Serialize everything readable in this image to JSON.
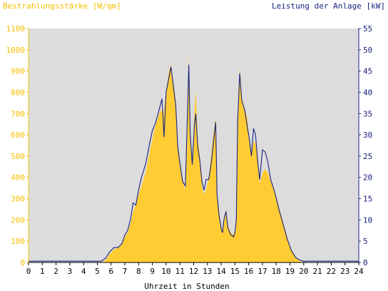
{
  "chart_data": {
    "type": "area",
    "title_left": "Bestrahlungsstärke [W/qm]",
    "title_right": "Leistung der Anlage [kW]",
    "xlabel": "Uhrzeit in Stunden",
    "xlim": [
      0,
      24
    ],
    "x_ticks": [
      0,
      1,
      2,
      3,
      4,
      5,
      6,
      7,
      8,
      9,
      10,
      11,
      12,
      13,
      14,
      15,
      16,
      17,
      18,
      19,
      20,
      21,
      22,
      23,
      24
    ],
    "y_left": {
      "lim": [
        0,
        1100
      ],
      "ticks": [
        0,
        100,
        200,
        300,
        400,
        500,
        600,
        700,
        800,
        900,
        1000,
        1100
      ]
    },
    "y_right": {
      "lim": [
        0,
        55
      ],
      "ticks": [
        0,
        5,
        10,
        15,
        20,
        25,
        30,
        35,
        40,
        45,
        50,
        55
      ]
    },
    "grid": false,
    "background": "#dcdcdc",
    "series": [
      {
        "axis": "left",
        "color": "#ffcc33",
        "style": "area",
        "points": [
          [
            0,
            0
          ],
          [
            5.3,
            0
          ],
          [
            5.6,
            10
          ],
          [
            5.9,
            40
          ],
          [
            6.2,
            60
          ],
          [
            6.5,
            70
          ],
          [
            6.8,
            90
          ],
          [
            7.0,
            120
          ],
          [
            7.2,
            140
          ],
          [
            7.4,
            180
          ],
          [
            7.6,
            240
          ],
          [
            7.8,
            270
          ],
          [
            8.0,
            320
          ],
          [
            8.2,
            360
          ],
          [
            8.5,
            420
          ],
          [
            8.8,
            520
          ],
          [
            9.0,
            580
          ],
          [
            9.2,
            640
          ],
          [
            9.5,
            700
          ],
          [
            9.7,
            720
          ],
          [
            9.8,
            690
          ],
          [
            10.0,
            800
          ],
          [
            10.2,
            900
          ],
          [
            10.35,
            930
          ],
          [
            10.5,
            860
          ],
          [
            10.7,
            760
          ],
          [
            10.85,
            560
          ],
          [
            11.0,
            480
          ],
          [
            11.2,
            380
          ],
          [
            11.4,
            340
          ],
          [
            11.55,
            600
          ],
          [
            11.65,
            990
          ],
          [
            11.75,
            600
          ],
          [
            11.9,
            460
          ],
          [
            12.05,
            700
          ],
          [
            12.15,
            810
          ],
          [
            12.3,
            580
          ],
          [
            12.45,
            500
          ],
          [
            12.6,
            360
          ],
          [
            12.75,
            320
          ],
          [
            12.9,
            340
          ],
          [
            13.1,
            400
          ],
          [
            13.3,
            520
          ],
          [
            13.5,
            640
          ],
          [
            13.6,
            680
          ],
          [
            13.7,
            320
          ],
          [
            13.85,
            240
          ],
          [
            14.0,
            170
          ],
          [
            14.1,
            150
          ],
          [
            14.2,
            190
          ],
          [
            14.35,
            230
          ],
          [
            14.5,
            170
          ],
          [
            14.7,
            140
          ],
          [
            14.9,
            130
          ],
          [
            15.0,
            150
          ],
          [
            15.1,
            230
          ],
          [
            15.2,
            700
          ],
          [
            15.35,
            920
          ],
          [
            15.5,
            780
          ],
          [
            15.7,
            720
          ],
          [
            15.9,
            680
          ],
          [
            16.05,
            560
          ],
          [
            16.2,
            500
          ],
          [
            16.35,
            570
          ],
          [
            16.5,
            560
          ],
          [
            16.65,
            480
          ],
          [
            16.8,
            370
          ],
          [
            17.0,
            420
          ],
          [
            17.2,
            440
          ],
          [
            17.4,
            420
          ],
          [
            17.6,
            380
          ],
          [
            17.9,
            330
          ],
          [
            18.2,
            260
          ],
          [
            18.5,
            190
          ],
          [
            18.8,
            120
          ],
          [
            19.1,
            60
          ],
          [
            19.4,
            25
          ],
          [
            19.7,
            8
          ],
          [
            20.0,
            0
          ],
          [
            24,
            0
          ]
        ]
      },
      {
        "axis": "right",
        "color": "#1a237e",
        "style": "line",
        "points": [
          [
            0,
            0.3
          ],
          [
            5.3,
            0.3
          ],
          [
            5.6,
            1
          ],
          [
            5.9,
            2.5
          ],
          [
            6.2,
            3.5
          ],
          [
            6.5,
            3.5
          ],
          [
            6.8,
            4.5
          ],
          [
            7.0,
            6.5
          ],
          [
            7.2,
            7.5
          ],
          [
            7.4,
            10
          ],
          [
            7.6,
            14
          ],
          [
            7.8,
            13.5
          ],
          [
            8.0,
            17
          ],
          [
            8.2,
            20
          ],
          [
            8.5,
            23
          ],
          [
            8.8,
            28
          ],
          [
            9.0,
            31
          ],
          [
            9.2,
            32.5
          ],
          [
            9.5,
            36
          ],
          [
            9.7,
            38.5
          ],
          [
            9.85,
            29.5
          ],
          [
            10.0,
            40
          ],
          [
            10.2,
            43.5
          ],
          [
            10.35,
            46
          ],
          [
            10.5,
            42
          ],
          [
            10.7,
            37
          ],
          [
            10.85,
            27
          ],
          [
            11.0,
            23.5
          ],
          [
            11.2,
            19
          ],
          [
            11.4,
            18
          ],
          [
            11.55,
            35
          ],
          [
            11.65,
            46.5
          ],
          [
            11.75,
            30
          ],
          [
            11.9,
            23
          ],
          [
            12.05,
            32
          ],
          [
            12.15,
            35
          ],
          [
            12.3,
            27
          ],
          [
            12.45,
            24
          ],
          [
            12.6,
            19
          ],
          [
            12.75,
            17
          ],
          [
            12.9,
            19.5
          ],
          [
            13.1,
            19.5
          ],
          [
            13.3,
            24
          ],
          [
            13.5,
            30
          ],
          [
            13.6,
            33
          ],
          [
            13.7,
            16
          ],
          [
            13.85,
            11
          ],
          [
            14.0,
            8
          ],
          [
            14.1,
            7
          ],
          [
            14.2,
            10
          ],
          [
            14.35,
            12
          ],
          [
            14.5,
            8
          ],
          [
            14.7,
            6.5
          ],
          [
            14.9,
            6
          ],
          [
            15.0,
            7
          ],
          [
            15.1,
            10
          ],
          [
            15.2,
            33
          ],
          [
            15.35,
            44.5
          ],
          [
            15.5,
            38
          ],
          [
            15.7,
            36
          ],
          [
            15.9,
            32
          ],
          [
            16.05,
            29
          ],
          [
            16.2,
            25
          ],
          [
            16.35,
            31.5
          ],
          [
            16.5,
            30
          ],
          [
            16.65,
            24
          ],
          [
            16.8,
            19.5
          ],
          [
            17.0,
            26.5
          ],
          [
            17.2,
            26
          ],
          [
            17.4,
            23.5
          ],
          [
            17.6,
            19.5
          ],
          [
            17.9,
            16.5
          ],
          [
            18.2,
            12.5
          ],
          [
            18.5,
            9
          ],
          [
            18.8,
            5.5
          ],
          [
            19.1,
            2.8
          ],
          [
            19.4,
            1.2
          ],
          [
            19.7,
            0.6
          ],
          [
            20.0,
            0.3
          ],
          [
            24,
            0.3
          ]
        ]
      }
    ]
  }
}
